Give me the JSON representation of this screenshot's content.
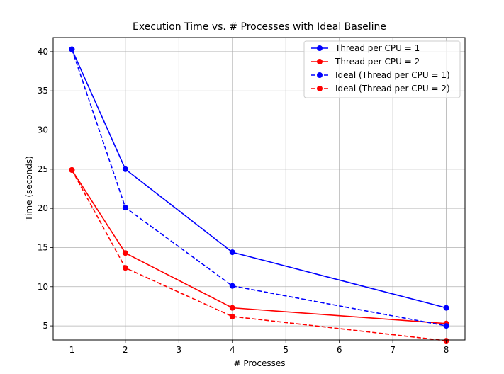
{
  "chart_data": {
    "type": "line",
    "title": "Execution Time vs. # Processes with Ideal Baseline",
    "xlabel": "# Processes",
    "ylabel": "Time (seconds)",
    "xlim": [
      0.65,
      8.35
    ],
    "ylim": [
      3.2,
      41.8
    ],
    "xticks": [
      1,
      2,
      3,
      4,
      5,
      6,
      7,
      8
    ],
    "yticks": [
      5,
      10,
      15,
      20,
      25,
      30,
      35,
      40
    ],
    "grid": true,
    "legend_position": "top-right",
    "series": [
      {
        "name": "Thread per CPU = 1",
        "color": "#0000ff",
        "linestyle": "solid",
        "marker": "circle",
        "x": [
          1,
          2,
          4,
          8
        ],
        "y": [
          40.3,
          25.0,
          14.4,
          7.3
        ]
      },
      {
        "name": "Thread per CPU = 2",
        "color": "#ff0000",
        "linestyle": "solid",
        "marker": "circle",
        "x": [
          1,
          2,
          4,
          8
        ],
        "y": [
          24.9,
          14.3,
          7.3,
          5.3
        ]
      },
      {
        "name": "Ideal (Thread per CPU = 1)",
        "color": "#0000ff",
        "linestyle": "dashed",
        "marker": "circle",
        "x": [
          1,
          2,
          4,
          8
        ],
        "y": [
          40.3,
          20.1,
          10.1,
          5.0
        ]
      },
      {
        "name": "Ideal (Thread per CPU = 2)",
        "color": "#ff0000",
        "linestyle": "dashed",
        "marker": "circle",
        "x": [
          1,
          2,
          4,
          8
        ],
        "y": [
          24.9,
          12.4,
          6.2,
          3.1
        ]
      }
    ]
  }
}
